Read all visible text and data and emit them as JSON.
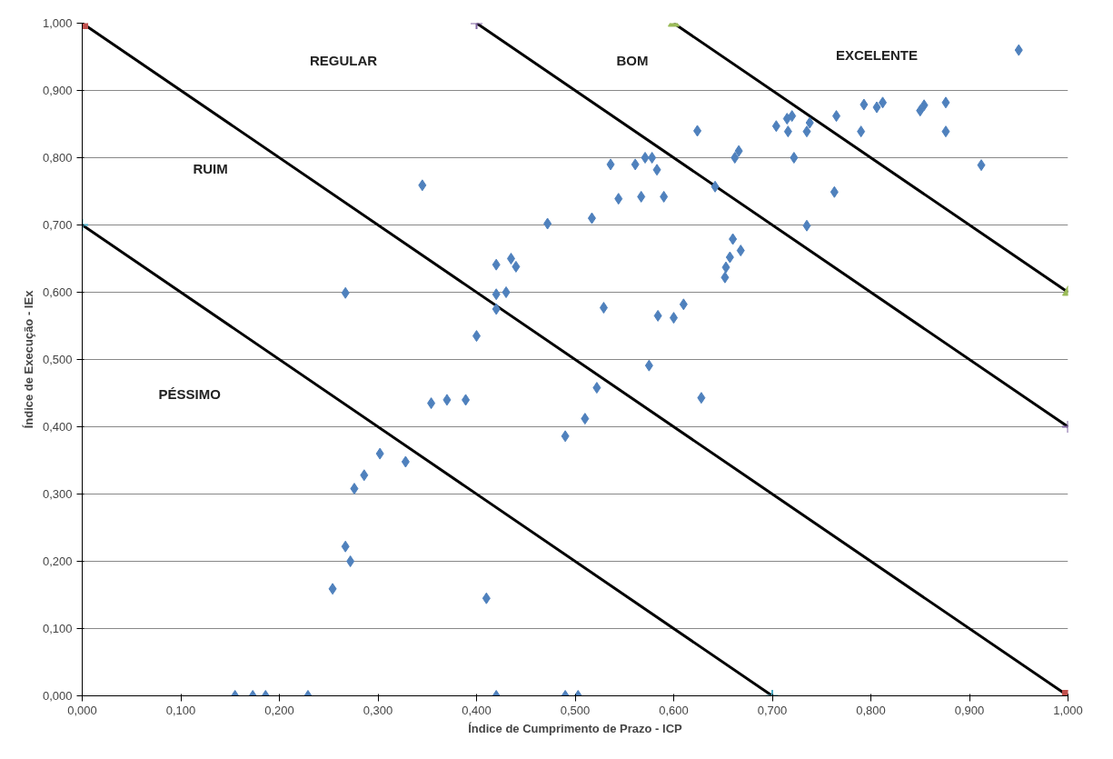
{
  "chart_data": {
    "type": "scatter",
    "xlabel": "Índice de Cumprimento de Prazo - ICP",
    "ylabel": "Índice de Execução - IEx",
    "xlim": [
      0,
      1
    ],
    "ylim": [
      0,
      1
    ],
    "xticks": [
      {
        "value": 0,
        "label": "0,000"
      },
      {
        "value": 0.1,
        "label": "0,100"
      },
      {
        "value": 0.2,
        "label": "0,200"
      },
      {
        "value": 0.3,
        "label": "0,300"
      },
      {
        "value": 0.4,
        "label": "0,400"
      },
      {
        "value": 0.5,
        "label": "0,500"
      },
      {
        "value": 0.6,
        "label": "0,600"
      },
      {
        "value": 0.7,
        "label": "0,700"
      },
      {
        "value": 0.8,
        "label": "0,800"
      },
      {
        "value": 0.9,
        "label": "0,900"
      },
      {
        "value": 1,
        "label": "1,000"
      }
    ],
    "yticks": [
      {
        "value": 0,
        "label": "0,000"
      },
      {
        "value": 0.1,
        "label": "0,100"
      },
      {
        "value": 0.2,
        "label": "0,200"
      },
      {
        "value": 0.3,
        "label": "0,300"
      },
      {
        "value": 0.4,
        "label": "0,400"
      },
      {
        "value": 0.5,
        "label": "0,500"
      },
      {
        "value": 0.6,
        "label": "0,600"
      },
      {
        "value": 0.7,
        "label": "0,700"
      },
      {
        "value": 0.8,
        "label": "0,800"
      },
      {
        "value": 0.9,
        "label": "0,900"
      },
      {
        "value": 1,
        "label": "1,000"
      }
    ],
    "grid": "y",
    "annotations": [
      "REGULAR",
      "BOM",
      "EXCELENTE",
      "RUIM",
      "PÉSSIMO"
    ],
    "series": [
      {
        "type": "line",
        "color": "#000000",
        "marker": "none",
        "x": [
          0,
          1
        ],
        "values": [
          1,
          0
        ]
      },
      {
        "type": "line",
        "color": "#000000",
        "marker": "none",
        "x": [
          0,
          0.7
        ],
        "values": [
          0.7,
          0
        ]
      },
      {
        "type": "line",
        "color": "#000000",
        "marker": "none",
        "x": [
          0.4,
          1
        ],
        "values": [
          1,
          0.4
        ]
      },
      {
        "type": "line",
        "color": "#000000",
        "marker": "none",
        "x": [
          0.6,
          1
        ],
        "values": [
          1,
          0.6
        ]
      },
      {
        "type": "scatter",
        "color": "#c0504d",
        "marker": "square",
        "x": [
          0,
          1
        ],
        "values": [
          1,
          0
        ]
      },
      {
        "type": "scatter",
        "color": "#4bacc6",
        "marker": "cross",
        "x": [
          0,
          0.7
        ],
        "values": [
          0.7,
          0
        ]
      },
      {
        "type": "scatter",
        "color": "#8064a2",
        "marker": "cross",
        "x": [
          0.4,
          1
        ],
        "values": [
          1,
          0.4
        ]
      },
      {
        "type": "scatter",
        "color": "#9bbb59",
        "marker": "triangle",
        "x": [
          0.6,
          1
        ],
        "values": [
          1,
          0.6
        ]
      },
      {
        "color": "#4f81bd",
        "marker": "diamond",
        "x": [
          0.95,
          0.876,
          0.876,
          0.912,
          0.85,
          0.854,
          0.806,
          0.812,
          0.793,
          0.79,
          0.765,
          0.763,
          0.738,
          0.735,
          0.735,
          0.722,
          0.72,
          0.716,
          0.715,
          0.704,
          0.666,
          0.662,
          0.642,
          0.624,
          0.66,
          0.668,
          0.657,
          0.653,
          0.652,
          0.61,
          0.6,
          0.628,
          0.584,
          0.575,
          0.59,
          0.583,
          0.578,
          0.571,
          0.567,
          0.561,
          0.544,
          0.536,
          0.517,
          0.472,
          0.529,
          0.522,
          0.51,
          0.49,
          0.44,
          0.435,
          0.43,
          0.42,
          0.42,
          0.42,
          0.4,
          0.345,
          0.389,
          0.37,
          0.354,
          0.267,
          0.302,
          0.328,
          0.286,
          0.276,
          0.267,
          0.272,
          0.254,
          0.41,
          0.155,
          0.173,
          0.186,
          0.229,
          0.42,
          0.49,
          0.503
        ],
        "values": [
          0.96,
          0.882,
          0.839,
          0.789,
          0.87,
          0.878,
          0.875,
          0.882,
          0.879,
          0.839,
          0.862,
          0.749,
          0.852,
          0.839,
          0.699,
          0.8,
          0.862,
          0.839,
          0.858,
          0.847,
          0.81,
          0.8,
          0.757,
          0.84,
          0.679,
          0.662,
          0.652,
          0.637,
          0.622,
          0.582,
          0.562,
          0.443,
          0.565,
          0.491,
          0.742,
          0.782,
          0.8,
          0.8,
          0.742,
          0.79,
          0.739,
          0.79,
          0.71,
          0.702,
          0.577,
          0.458,
          0.412,
          0.386,
          0.638,
          0.65,
          0.6,
          0.597,
          0.641,
          0.575,
          0.535,
          0.759,
          0.44,
          0.44,
          0.435,
          0.599,
          0.36,
          0.348,
          0.328,
          0.308,
          0.222,
          0.2,
          0.159,
          0.145,
          0,
          0,
          0,
          0,
          0,
          0,
          0
        ]
      }
    ]
  }
}
